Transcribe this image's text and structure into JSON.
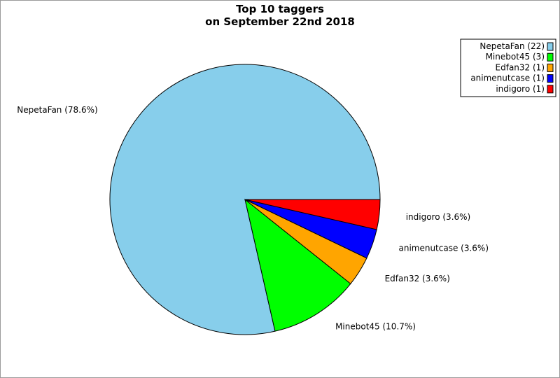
{
  "chart_data": {
    "type": "pie",
    "title": "Top 10 taggers",
    "subtitle": "on September 22nd 2018",
    "legend_position": "top-right",
    "slices": [
      {
        "name": "NepetaFan",
        "value": 22,
        "percent_label": "NepetaFan (78.6%)",
        "legend_label": "NepetaFan (22)",
        "color": "#87CEEB"
      },
      {
        "name": "Minebot45",
        "value": 3,
        "percent_label": "Minebot45 (10.7%)",
        "legend_label": "Minebot45 (3)",
        "color": "#00FF00"
      },
      {
        "name": "Edfan32",
        "value": 1,
        "percent_label": "Edfan32 (3.6%)",
        "legend_label": "Edfan32 (1)",
        "color": "#FFA500"
      },
      {
        "name": "animenutcase",
        "value": 1,
        "percent_label": "animenutcase (3.6%)",
        "legend_label": "animenutcase (1)",
        "color": "#0000FF"
      },
      {
        "name": "indigoro",
        "value": 1,
        "percent_label": "indigoro (3.6%)",
        "legend_label": "indigoro (1)",
        "color": "#FF0000"
      }
    ]
  }
}
